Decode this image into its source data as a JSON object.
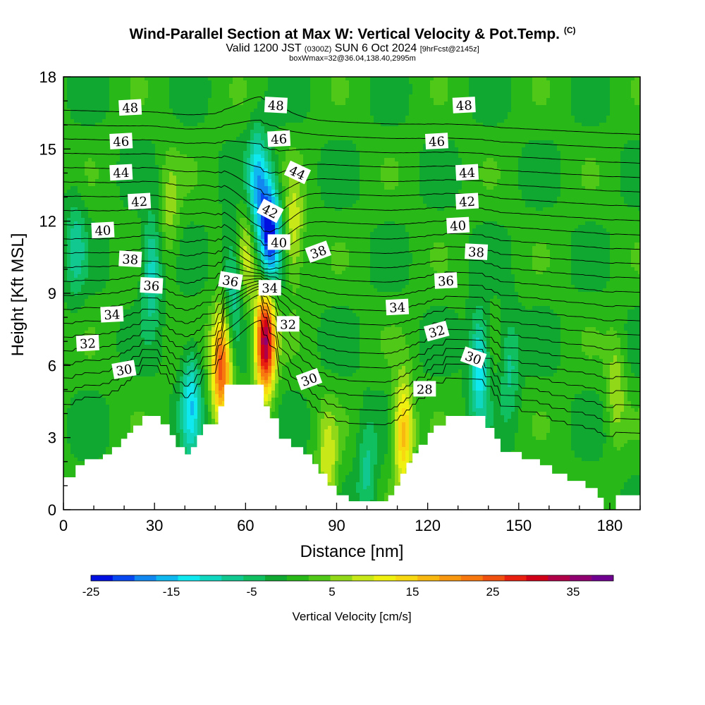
{
  "header": {
    "title": "Wind-Parallel Section at Max W: Vertical Velocity & Pot.Temp.",
    "copyright": "(C)",
    "valid_prefix": "Valid 1200 JST",
    "valid_utc": "(0300Z)",
    "valid_date": "SUN 6 Oct 2024",
    "forecast": "[9hrFcst@2145z]",
    "boxwmax": "boxWmax=32@36.04,138.40,2995m"
  },
  "colors": {
    "bar": [
      "#0010e0",
      "#0848f0",
      "#1088f0",
      "#10b8f0",
      "#10e8f0",
      "#10d8c0",
      "#10c890",
      "#10c060",
      "#10a830",
      "#28b818",
      "#50c818",
      "#90d818",
      "#c8e818",
      "#f0f010",
      "#f8d810",
      "#f8b810",
      "#f89810",
      "#f87810",
      "#f05010",
      "#e82010",
      "#d00018",
      "#b00048",
      "#900070",
      "#700090"
    ],
    "terrain": "#ffffff",
    "contour": "#000000"
  },
  "chart_data": {
    "type": "heatmap",
    "title": "Wind-Parallel Section at Max W: Vertical Velocity & Pot.Temp.",
    "xlabel": "Distance [nm]",
    "ylabel": "Height [Kft MSL]",
    "xlim": [
      0,
      190
    ],
    "ylim": [
      0,
      18
    ],
    "xticks": [
      0,
      30,
      60,
      90,
      120,
      150,
      180
    ],
    "yticks": [
      0,
      3,
      6,
      9,
      12,
      15,
      18
    ],
    "colorbar": {
      "label": "Vertical Velocity [cm/s]",
      "range": [
        -25,
        40
      ],
      "tick_labels": [
        "-25",
        "-15",
        "-5",
        "5",
        "15",
        "25",
        "35"
      ],
      "tick_values": [
        -25,
        -15,
        -5,
        5,
        15,
        25,
        35
      ]
    },
    "background_w": 0,
    "features": [
      {
        "kind": "updraft",
        "x": 66.5,
        "y": 7.0,
        "peak": 35
      },
      {
        "kind": "updraft",
        "x": 52.0,
        "y": 6.0,
        "peak": 26
      },
      {
        "kind": "updraft",
        "x": 76.0,
        "y": 11.5,
        "peak": 10
      },
      {
        "kind": "updraft",
        "x": 60.0,
        "y": 10.5,
        "peak": 8
      },
      {
        "kind": "updraft",
        "x": 35.0,
        "y": 12.5,
        "peak": 6
      },
      {
        "kind": "updraft",
        "x": 112.0,
        "y": 3.2,
        "peak": 18
      },
      {
        "kind": "updraft",
        "x": 87.0,
        "y": 1.8,
        "peak": 10
      },
      {
        "kind": "updraft",
        "x": 182.0,
        "y": 5.0,
        "peak": 7
      },
      {
        "kind": "downdraft",
        "x": 68.0,
        "y": 11.5,
        "peak": -25
      },
      {
        "kind": "downdraft",
        "x": 64.0,
        "y": 13.5,
        "peak": -15
      },
      {
        "kind": "downdraft",
        "x": 56.0,
        "y": 9.5,
        "peak": -10
      },
      {
        "kind": "downdraft",
        "x": 42.0,
        "y": 4.5,
        "peak": -13
      },
      {
        "kind": "downdraft",
        "x": 29.0,
        "y": 10.0,
        "peak": -11
      },
      {
        "kind": "downdraft",
        "x": 137.0,
        "y": 6.0,
        "peak": -14
      },
      {
        "kind": "downdraft",
        "x": 147.0,
        "y": 6.0,
        "peak": -7
      },
      {
        "kind": "downdraft",
        "x": 4.0,
        "y": 11.0,
        "peak": -7
      },
      {
        "kind": "downdraft",
        "x": 100.0,
        "y": 1.5,
        "peak": -7
      }
    ],
    "terrain_profile": [
      [
        0,
        1.35
      ],
      [
        4,
        1.35
      ],
      [
        4,
        1.85
      ],
      [
        7,
        1.85
      ],
      [
        7,
        2.1
      ],
      [
        13,
        2.1
      ],
      [
        13,
        2.3
      ],
      [
        16,
        2.3
      ],
      [
        16,
        2.6
      ],
      [
        19,
        2.6
      ],
      [
        19,
        2.95
      ],
      [
        21,
        2.95
      ],
      [
        21,
        3.2
      ],
      [
        23,
        3.2
      ],
      [
        23,
        3.5
      ],
      [
        26,
        3.5
      ],
      [
        26,
        3.9
      ],
      [
        32,
        3.9
      ],
      [
        32,
        3.55
      ],
      [
        35,
        3.55
      ],
      [
        35,
        3.1
      ],
      [
        37,
        3.1
      ],
      [
        37,
        2.6
      ],
      [
        40,
        2.6
      ],
      [
        40,
        2.3
      ],
      [
        42,
        2.3
      ],
      [
        42,
        2.6
      ],
      [
        44,
        2.6
      ],
      [
        44,
        3.1
      ],
      [
        46,
        3.1
      ],
      [
        46,
        3.55
      ],
      [
        51,
        3.55
      ],
      [
        51,
        4.3
      ],
      [
        53,
        4.3
      ],
      [
        53,
        5.2
      ],
      [
        61,
        5.2
      ],
      [
        61,
        5.2
      ],
      [
        66,
        5.2
      ],
      [
        66,
        4.3
      ],
      [
        68,
        4.3
      ],
      [
        68,
        3.8
      ],
      [
        71,
        3.8
      ],
      [
        71,
        2.95
      ],
      [
        75,
        2.95
      ],
      [
        75,
        2.6
      ],
      [
        79,
        2.6
      ],
      [
        79,
        2.3
      ],
      [
        82,
        2.3
      ],
      [
        82,
        1.9
      ],
      [
        84,
        1.9
      ],
      [
        84,
        1.5
      ],
      [
        87,
        1.5
      ],
      [
        87,
        1.0
      ],
      [
        90,
        1.0
      ],
      [
        90,
        0.6
      ],
      [
        94,
        0.6
      ],
      [
        94,
        0.35
      ],
      [
        107,
        0.35
      ],
      [
        107,
        0.6
      ],
      [
        109,
        0.6
      ],
      [
        109,
        1.0
      ],
      [
        111,
        1.0
      ],
      [
        111,
        1.5
      ],
      [
        113,
        1.5
      ],
      [
        113,
        1.95
      ],
      [
        115,
        1.95
      ],
      [
        115,
        2.35
      ],
      [
        117,
        2.35
      ],
      [
        117,
        2.7
      ],
      [
        120,
        2.7
      ],
      [
        120,
        3.2
      ],
      [
        122,
        3.2
      ],
      [
        122,
        3.5
      ],
      [
        126,
        3.5
      ],
      [
        126,
        3.9
      ],
      [
        139,
        3.9
      ],
      [
        139,
        3.4
      ],
      [
        142,
        3.4
      ],
      [
        142,
        2.95
      ],
      [
        144,
        2.95
      ],
      [
        144,
        2.4
      ],
      [
        151,
        2.4
      ],
      [
        151,
        2.1
      ],
      [
        157,
        2.1
      ],
      [
        157,
        1.85
      ],
      [
        161,
        1.85
      ],
      [
        161,
        1.5
      ],
      [
        166,
        1.5
      ],
      [
        166,
        1.2
      ],
      [
        172,
        1.2
      ],
      [
        172,
        0.9
      ],
      [
        176,
        0.9
      ],
      [
        176,
        0.5
      ],
      [
        178,
        0.5
      ],
      [
        178,
        0.0
      ],
      [
        182,
        0.0
      ],
      [
        182,
        0.6
      ],
      [
        190,
        0.6
      ]
    ],
    "isentropes": {
      "levels": [
        28,
        29,
        30,
        31,
        32,
        33,
        34,
        35,
        36,
        37,
        38,
        39,
        40,
        41,
        42,
        43,
        44,
        45,
        46,
        47,
        48,
        49
      ],
      "base_height_left": 4.0,
      "base_height_right": 3.0,
      "kft_per_level": 0.6
    },
    "contour_labels": [
      {
        "text": "48",
        "x": 22,
        "y": 16.7,
        "angle": -3
      },
      {
        "text": "46",
        "x": 19,
        "y": 15.3,
        "angle": -3
      },
      {
        "text": "44",
        "x": 19,
        "y": 14.0,
        "angle": -3
      },
      {
        "text": "42",
        "x": 25,
        "y": 12.8,
        "angle": -3
      },
      {
        "text": "40",
        "x": 13,
        "y": 11.6,
        "angle": -3
      },
      {
        "text": "38",
        "x": 22,
        "y": 10.4,
        "angle": 3
      },
      {
        "text": "36",
        "x": 29,
        "y": 9.3,
        "angle": 3
      },
      {
        "text": "34",
        "x": 16,
        "y": 8.1,
        "angle": -3
      },
      {
        "text": "32",
        "x": 8,
        "y": 6.9,
        "angle": -3
      },
      {
        "text": "30",
        "x": 20,
        "y": 5.8,
        "angle": -10
      },
      {
        "text": "48",
        "x": 70,
        "y": 16.8,
        "angle": 3
      },
      {
        "text": "46",
        "x": 71,
        "y": 15.4,
        "angle": -3
      },
      {
        "text": "44",
        "x": 77,
        "y": 14.0,
        "angle": 25
      },
      {
        "text": "42",
        "x": 68,
        "y": 12.4,
        "angle": 28
      },
      {
        "text": "40",
        "x": 71,
        "y": 11.1,
        "angle": 0
      },
      {
        "text": "38",
        "x": 84,
        "y": 10.7,
        "angle": -20
      },
      {
        "text": "36",
        "x": 55,
        "y": 9.5,
        "angle": 10
      },
      {
        "text": "34",
        "x": 68,
        "y": 9.2,
        "angle": 0
      },
      {
        "text": "32",
        "x": 74,
        "y": 7.7,
        "angle": 0
      },
      {
        "text": "30",
        "x": 81,
        "y": 5.4,
        "angle": -20
      },
      {
        "text": "48",
        "x": 132,
        "y": 16.8,
        "angle": -3
      },
      {
        "text": "46",
        "x": 123,
        "y": 15.3,
        "angle": -3
      },
      {
        "text": "44",
        "x": 133,
        "y": 14.0,
        "angle": -3
      },
      {
        "text": "42",
        "x": 133,
        "y": 12.8,
        "angle": -3
      },
      {
        "text": "40",
        "x": 130,
        "y": 11.8,
        "angle": -3
      },
      {
        "text": "38",
        "x": 136,
        "y": 10.7,
        "angle": 3
      },
      {
        "text": "36",
        "x": 126,
        "y": 9.5,
        "angle": -3
      },
      {
        "text": "34",
        "x": 110,
        "y": 8.4,
        "angle": -3
      },
      {
        "text": "32",
        "x": 123,
        "y": 7.4,
        "angle": -15
      },
      {
        "text": "30",
        "x": 135,
        "y": 6.3,
        "angle": 20
      },
      {
        "text": "28",
        "x": 119,
        "y": 5.0,
        "angle": 0
      }
    ]
  }
}
